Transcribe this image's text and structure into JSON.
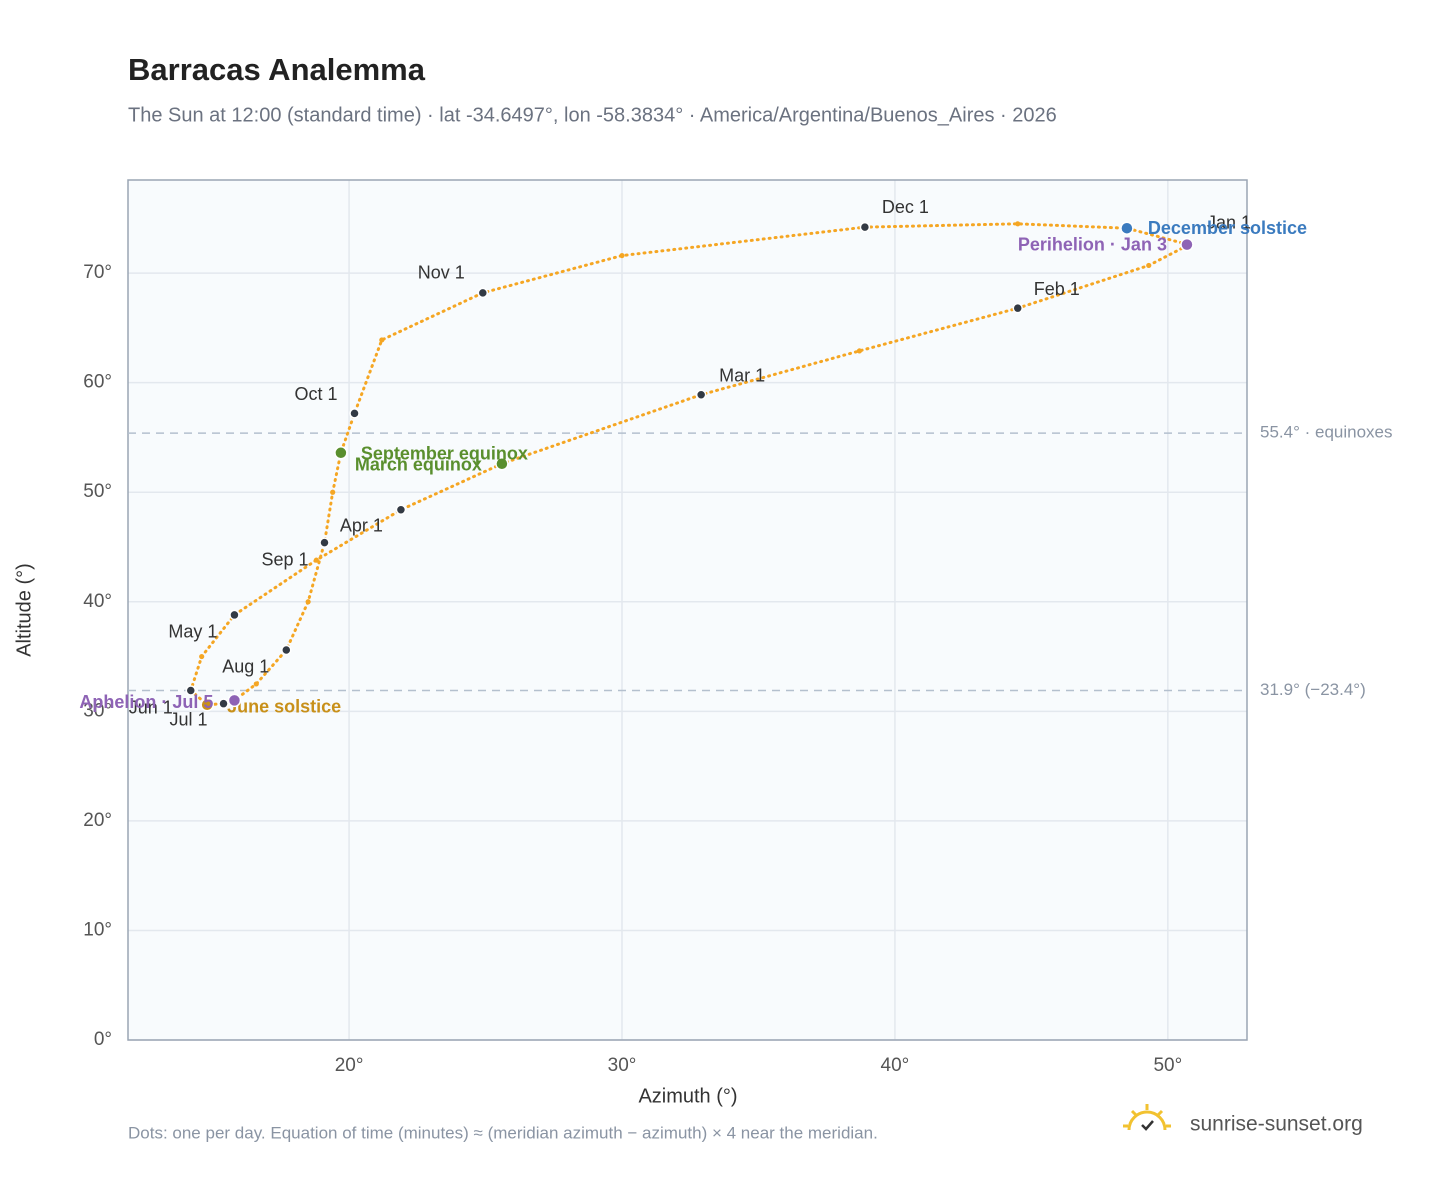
{
  "chart_data": {
    "type": "line",
    "title": "Barracas Analemma",
    "subtitle": "The Sun at 12:00 (standard time) · lat -34.6497°, lon -58.3834° · America/Argentina/Buenos_Aires · 2026",
    "x_label": "Azimuth (°)",
    "y_label": "Altitude (°)",
    "note": "Dots: one per day. Equation of time (minutes) ≈ (meridian azimuth − azimuth) × 4 near the meridian.",
    "brand": "sunrise-sunset.org",
    "color": "#f5a623",
    "x": [
      50.7,
      49.3,
      44.5,
      38.7,
      32.9,
      25.6,
      21.9,
      18.8,
      15.8,
      14.6,
      14.2,
      14.8,
      15.4,
      15.8,
      16.6,
      17.7,
      18.5,
      19.1,
      19.4,
      19.7,
      20.2,
      21.2,
      24.9,
      30.0,
      38.9,
      44.5,
      48.5,
      50.6
    ],
    "values": [
      72.5,
      70.7,
      66.8,
      62.9,
      58.9,
      52.6,
      48.4,
      43.8,
      38.8,
      35.0,
      31.9,
      30.6,
      30.7,
      31.0,
      32.5,
      35.6,
      40.0,
      45.4,
      50.0,
      53.6,
      57.2,
      63.9,
      68.2,
      71.6,
      74.2,
      74.5,
      74.1,
      72.7
    ],
    "markers": [
      {
        "label": "Jan 1",
        "x": 50.7,
        "y": 72.5,
        "color": "#333a44"
      },
      {
        "label": "Feb 1",
        "x": 44.5,
        "y": 66.8,
        "color": "#333a44"
      },
      {
        "label": "Mar 1",
        "x": 32.9,
        "y": 58.9,
        "color": "#333a44"
      },
      {
        "label": "Apr 1",
        "x": 21.9,
        "y": 48.4,
        "color": "#333a44"
      },
      {
        "label": "May 1",
        "x": 15.8,
        "y": 38.8,
        "color": "#333a44"
      },
      {
        "label": "Jun 1",
        "x": 14.2,
        "y": 31.9,
        "color": "#333a44"
      },
      {
        "label": "Jul 1",
        "x": 15.4,
        "y": 30.7,
        "color": "#333a44"
      },
      {
        "label": "Aug 1",
        "x": 17.7,
        "y": 35.6,
        "color": "#333a44"
      },
      {
        "label": "Sep 1",
        "x": 19.1,
        "y": 45.4,
        "color": "#333a44"
      },
      {
        "label": "Oct 1",
        "x": 20.2,
        "y": 57.2,
        "color": "#333a44"
      },
      {
        "label": "Nov 1",
        "x": 24.9,
        "y": 68.2,
        "color": "#333a44"
      },
      {
        "label": "Dec 1",
        "x": 38.9,
        "y": 74.2,
        "color": "#333a44"
      },
      {
        "label": "March equinox",
        "x": 25.6,
        "y": 52.6,
        "color": "#5a8f2e"
      },
      {
        "label": "September equinox",
        "x": 19.7,
        "y": 53.6,
        "color": "#5a8f2e"
      },
      {
        "label": "June solstice",
        "x": 14.8,
        "y": 30.6,
        "color": "#c8901a"
      },
      {
        "label": "December solstice",
        "x": 48.5,
        "y": 74.1,
        "color": "#3b7bbf"
      },
      {
        "label": "Perihelion · Jan 3",
        "x": 50.7,
        "y": 72.6,
        "color": "#8e63b5"
      },
      {
        "label": "Aphelion · Jul 5",
        "x": 15.8,
        "y": 31.0,
        "color": "#8e63b5"
      }
    ],
    "reference_lines": [
      {
        "value": 55.4,
        "label": "55.4° · equinoxes"
      },
      {
        "value": 31.9,
        "label": "31.9° (−23.4°)"
      }
    ],
    "xlim": [
      11.9,
      52.9
    ],
    "ylim": [
      0,
      78.5
    ],
    "xticks": [
      {
        "value": 20,
        "label": "20°"
      },
      {
        "value": 30,
        "label": "30°"
      },
      {
        "value": 40,
        "label": "40°"
      },
      {
        "value": 50,
        "label": "50°"
      }
    ],
    "yticks": [
      {
        "value": 0,
        "label": "0°"
      },
      {
        "value": 10,
        "label": "10°"
      },
      {
        "value": 20,
        "label": "20°"
      },
      {
        "value": 30,
        "label": "30°"
      },
      {
        "value": 40,
        "label": "40°"
      },
      {
        "value": 50,
        "label": "50°"
      },
      {
        "value": 60,
        "label": "60°"
      },
      {
        "value": 70,
        "label": "70°"
      }
    ],
    "grid": true
  }
}
